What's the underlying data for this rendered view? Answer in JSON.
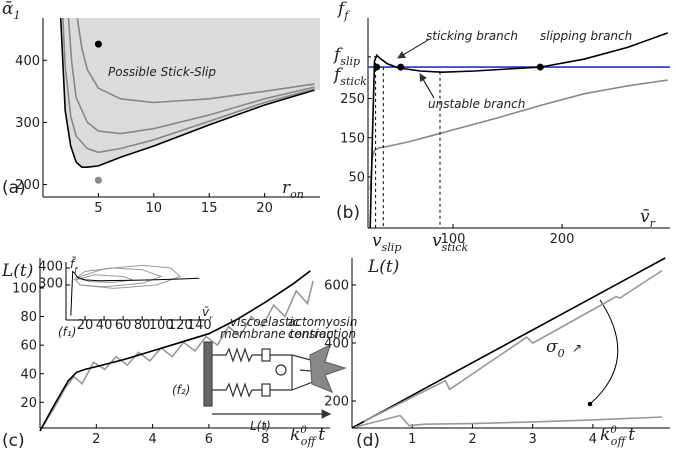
{
  "chart_data": [
    {
      "type": "line",
      "panel": "(a)",
      "x_label": {
        "base": "r",
        "sub": "on"
      },
      "y_label": {
        "base": "ᾱ",
        "sub": "1"
      },
      "xlim": [
        0,
        25
      ],
      "ylim": [
        180,
        468
      ],
      "xticks": [
        5,
        10,
        15,
        20
      ],
      "yticks": [
        200,
        300,
        400
      ],
      "region_color": "#dcdcdc",
      "series": [
        {
          "color": "#000000",
          "x": [
            1.6,
            1.7,
            2,
            2.5,
            3,
            3.5,
            4,
            5,
            7,
            10,
            15,
            20,
            24.5
          ],
          "values": [
            468,
            432,
            319,
            262,
            236,
            228,
            228,
            230,
            244,
            262,
            296,
            328,
            352
          ]
        },
        {
          "color": "#888888",
          "x": [
            1.8,
            2,
            2.5,
            3,
            4,
            5,
            7,
            10,
            15,
            20,
            24.5
          ],
          "values": [
            468,
            390,
            310,
            278,
            258,
            252,
            258,
            272,
            302,
            332,
            354
          ]
        },
        {
          "color": "#888888",
          "x": [
            2.3,
            2.6,
            3,
            4,
            5,
            7,
            10,
            15,
            20,
            24.5
          ],
          "values": [
            468,
            395,
            340,
            300,
            286,
            282,
            290,
            312,
            338,
            357
          ]
        },
        {
          "color": "#888888",
          "x": [
            3.1,
            3.5,
            4,
            5,
            7,
            10,
            15,
            20,
            24.5
          ],
          "values": [
            468,
            420,
            385,
            355,
            338,
            332,
            338,
            350,
            362
          ]
        },
        {
          "color": "#000000",
          "markers": true,
          "x": [
            5
          ],
          "values": [
            426
          ]
        },
        {
          "color": "#888888",
          "markers": true,
          "x": [
            5
          ],
          "values": [
            207
          ]
        }
      ],
      "annotations": [
        "Possible Stick-Slip"
      ]
    },
    {
      "type": "line",
      "panel": "(b)",
      "x_label": {
        "base": "v̄",
        "sub": "r"
      },
      "y_label": {
        "base": "f̄",
        "sub": "f"
      },
      "xlim": [
        22,
        299
      ],
      "ylim": [
        -80,
        455
      ],
      "xticks": [
        100,
        200
      ],
      "yticks": [
        50,
        150,
        250
      ],
      "series": [
        {
          "color": "#888888",
          "x": [
            24,
            26,
            28,
            32,
            40,
            60,
            80,
            100,
            140,
            180,
            220,
            260,
            297
          ],
          "values": [
            17,
            100,
            118,
            124,
            128,
            140,
            155,
            170,
            200,
            232,
            262,
            282,
            297
          ]
        },
        {
          "color": "#2233cc",
          "x": [
            22,
            299
          ],
          "values": [
            330,
            330
          ]
        },
        {
          "color": "#000000",
          "dash": true,
          "x": [
            22,
            29
          ],
          "values": [
            356,
            356
          ]
        },
        {
          "color": "#000000",
          "dash": true,
          "x": [
            29,
            29
          ],
          "values": [
            356,
            -80
          ]
        },
        {
          "color": "#000000",
          "dash": true,
          "x": [
            36,
            36
          ],
          "values": [
            330,
            -80
          ]
        },
        {
          "color": "#000000",
          "dash": true,
          "x": [
            88,
            88
          ],
          "values": [
            318,
            -80
          ]
        },
        {
          "color": "#000000",
          "x": [
            24,
            26,
            28,
            30,
            34,
            40,
            50,
            70,
            90,
            120,
            150,
            180,
            220,
            260,
            297
          ],
          "values": [
            -80,
            150,
            345,
            360,
            350,
            338,
            328,
            320,
            317,
            320,
            325,
            330,
            350,
            380,
            417
          ]
        },
        {
          "color": "#000000",
          "markers": true,
          "x": [
            30,
            52,
            180
          ],
          "values": [
            330,
            330,
            330
          ]
        }
      ],
      "annotations": [
        "sticking branch",
        "slipping branch",
        "unstable branch",
        {
          "base": "f",
          "sub": "slip"
        },
        {
          "base": "f",
          "sub": "stick"
        },
        {
          "base": "v",
          "sub": "slip"
        },
        {
          "base": "v",
          "sub": "stick"
        }
      ]
    },
    {
      "type": "line",
      "panel": "(c)",
      "x_label": {
        "base": "k",
        "sup": "0",
        "sub": "off",
        "tail": "t"
      },
      "y_label": {
        "base": "L(t)"
      },
      "xlim": [
        0,
        10.3
      ],
      "ylim": [
        2,
        121
      ],
      "xticks": [
        2,
        4,
        6,
        8
      ],
      "yticks": [
        20,
        40,
        60,
        80,
        100
      ],
      "series": [
        {
          "color": "#999999",
          "x": [
            0,
            0.5,
            0.9,
            1.2,
            1.5,
            1.9,
            2.3,
            2.7,
            3.1,
            3.5,
            3.9,
            4.3,
            4.7,
            5.1,
            5.5,
            5.9,
            6.3,
            6.7,
            7.1,
            7.5,
            7.9,
            8.3,
            8.7,
            9.1,
            9.5,
            9.7
          ],
          "values": [
            0,
            16,
            30,
            38,
            33,
            48,
            43,
            52,
            46,
            55,
            49,
            58,
            52,
            62,
            56,
            66,
            60,
            73,
            66,
            80,
            73,
            88,
            80,
            98,
            89,
            105
          ]
        },
        {
          "color": "#000000",
          "x": [
            0,
            0.5,
            1,
            1.3,
            1.6,
            2,
            3,
            4,
            5,
            6,
            7,
            8,
            9,
            9.6
          ],
          "values": [
            0,
            18,
            35,
            41,
            43,
            45,
            50,
            56,
            62,
            68,
            78,
            90,
            103,
            112
          ]
        }
      ],
      "annotations": [
        "viscoelastic",
        "membrane tension",
        "actomyosin",
        "contraction",
        "(f₂)",
        "L(t)",
        "(f₁)"
      ]
    },
    {
      "type": "line",
      "x_label": {
        "base": "v̄",
        "sub": "r"
      },
      "y_label": {
        "base": "f̄",
        "sub": "f"
      },
      "xlim": [
        0,
        146
      ],
      "ylim": [
        94,
        435
      ],
      "xticks": [
        20,
        40,
        60,
        80,
        100,
        120,
        140
      ],
      "yticks": [
        300,
        400
      ],
      "series": [
        {
          "color": "#999999",
          "x": [
            8,
            20,
            50,
            80,
            100,
            80,
            40,
            15,
            10,
            30,
            60,
            70,
            50,
            25,
            12
          ],
          "values": [
            330,
            380,
            400,
            390,
            350,
            310,
            290,
            300,
            330,
            360,
            350,
            330,
            315,
            320,
            340
          ]
        },
        {
          "color": "#999999",
          "x": [
            10,
            40,
            80,
            110,
            120,
            95,
            50,
            14
          ],
          "values": [
            340,
            395,
            415,
            400,
            350,
            300,
            280,
            300
          ]
        },
        {
          "color": "#000000",
          "x": [
            5,
            7,
            9,
            12,
            20,
            35,
            60,
            90,
            120,
            140
          ],
          "values": [
            120,
            380,
            370,
            345,
            330,
            325,
            327,
            330,
            335,
            340
          ]
        }
      ]
    },
    {
      "type": "line",
      "panel": "(d)",
      "x_label": {
        "base": "k",
        "sup": "0",
        "sub": "off",
        "tail": "t"
      },
      "y_label": {
        "base": "L(t)"
      },
      "xlim": [
        0,
        5.28
      ],
      "ylim": [
        107,
        693
      ],
      "xticks": [
        1,
        2,
        3,
        4
      ],
      "yticks": [
        200,
        400,
        600
      ],
      "series": [
        {
          "color": "#000000",
          "x": [
            0,
            5.2
          ],
          "values": [
            107,
            693
          ]
        },
        {
          "color": "#999999",
          "x": [
            0.2,
            1.55,
            1.62,
            2.9,
            3.0,
            3.05,
            4.3,
            4.38,
            4.45,
            5.15
          ],
          "values": [
            130,
            270,
            240,
            420,
            400,
            405,
            550,
            560,
            555,
            650
          ]
        },
        {
          "color": "#999999",
          "x": [
            0.05,
            0.8,
            0.95,
            1.2,
            2,
            3,
            4,
            5.15
          ],
          "values": [
            110,
            150,
            115,
            120,
            122,
            128,
            135,
            145
          ]
        }
      ],
      "annotations": [
        {
          "base": "σ",
          "sub": "0"
        },
        "↗"
      ]
    }
  ]
}
